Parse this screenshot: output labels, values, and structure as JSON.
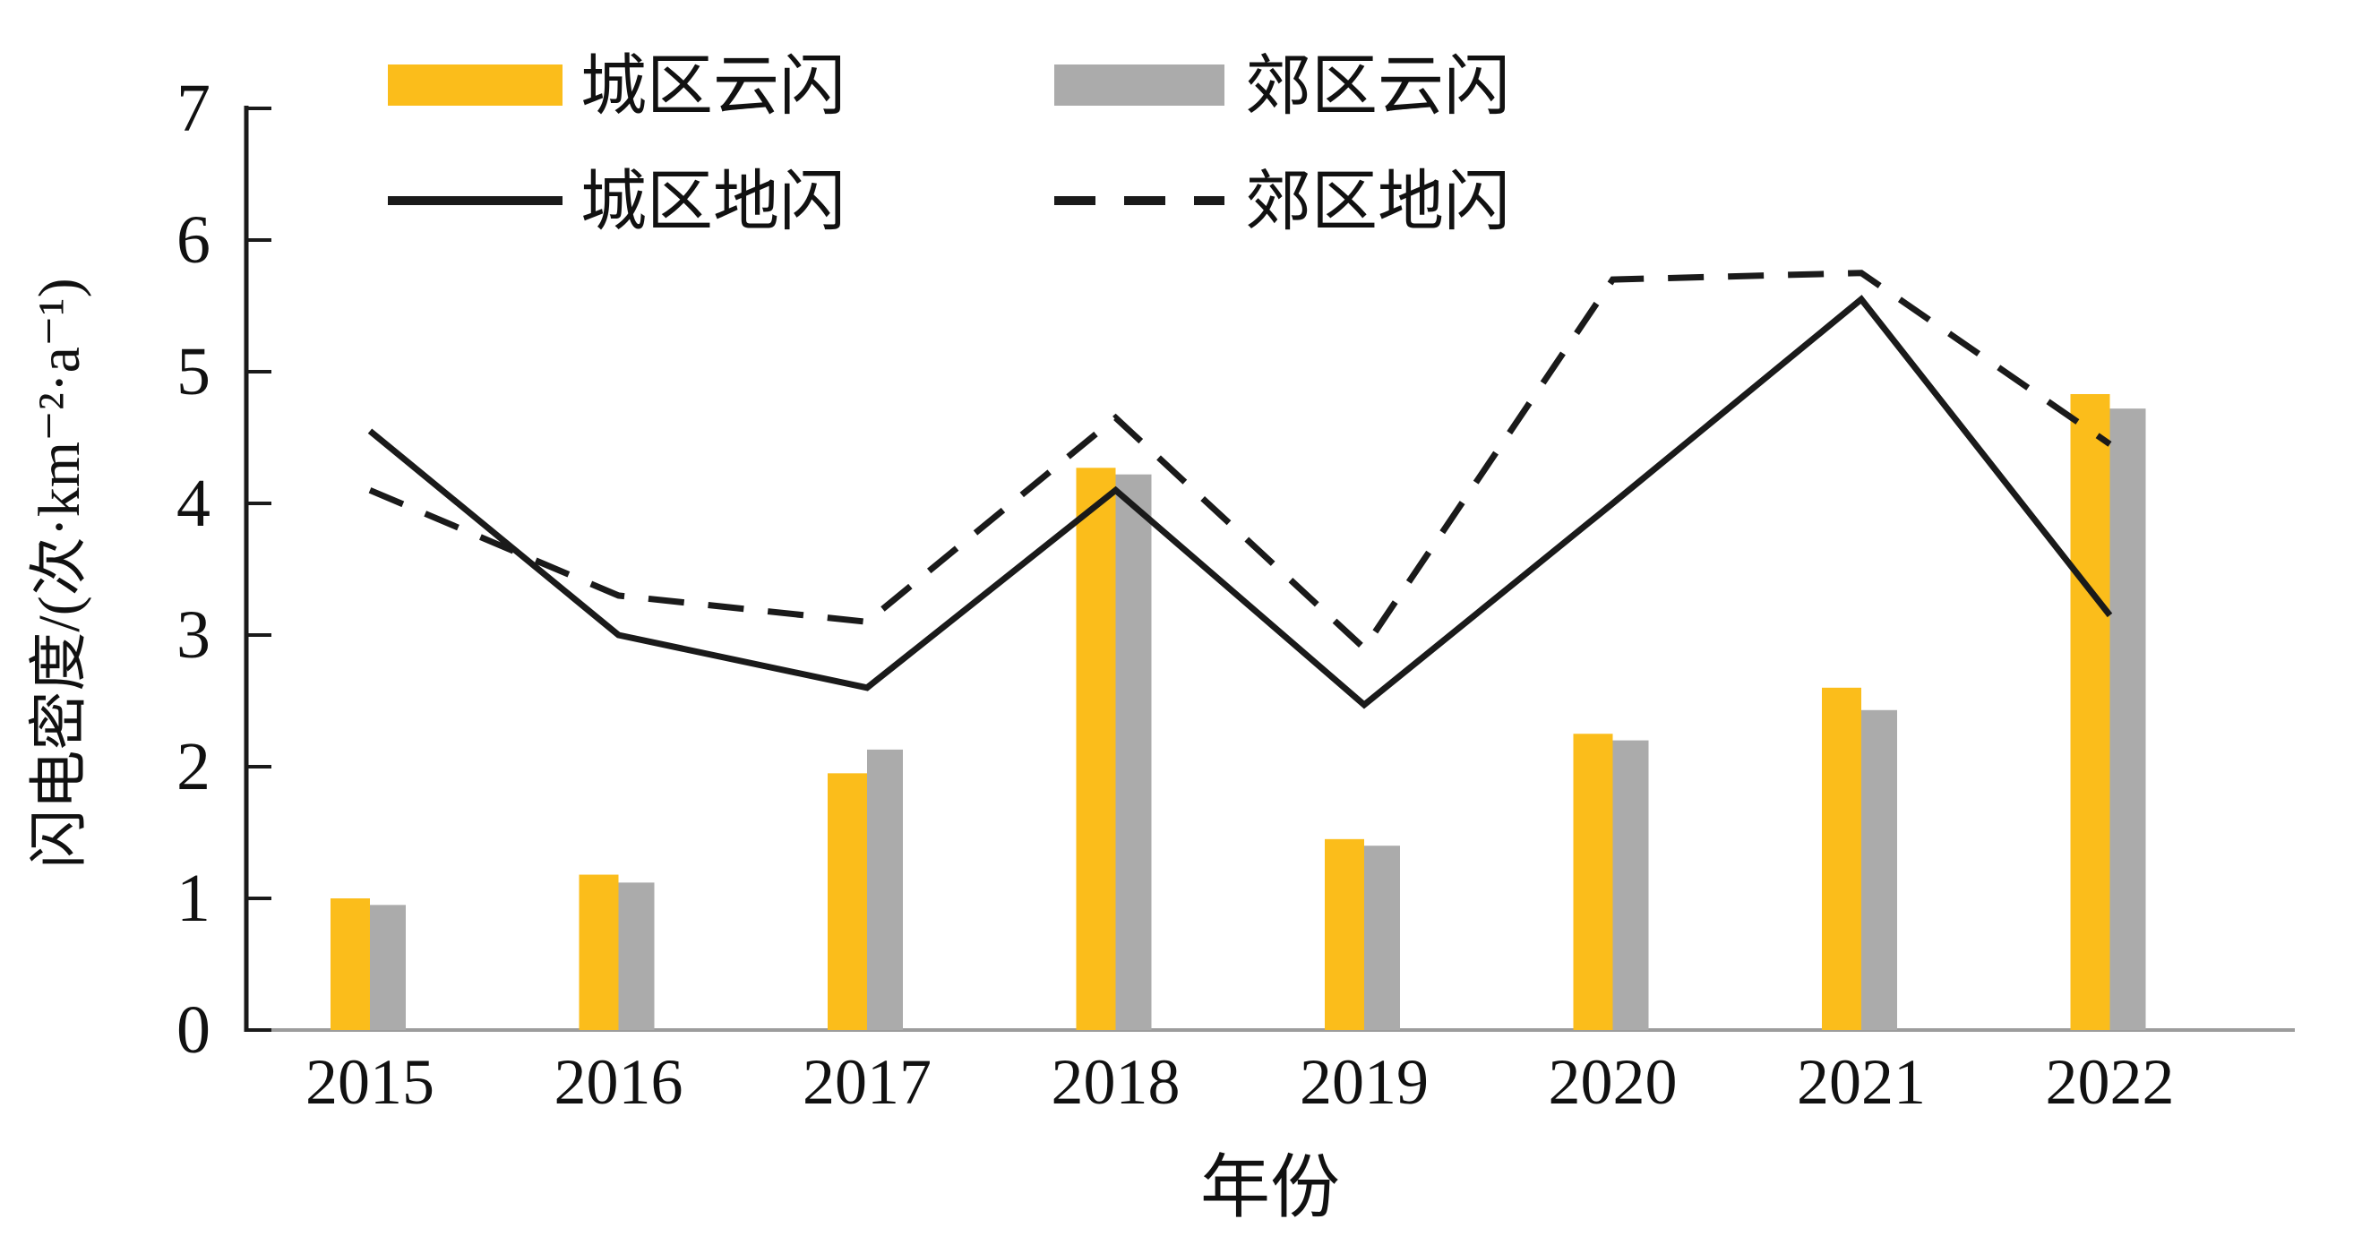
{
  "chart_data": {
    "type": "bar+line",
    "title": "",
    "xlabel": "年份",
    "ylabel": "闪电密度/(次·km⁻²·a⁻¹)",
    "ylim": [
      0,
      7
    ],
    "yticks": [
      "0",
      "1",
      "2",
      "3",
      "4",
      "5",
      "6",
      "7"
    ],
    "grid": false,
    "legend_position": "top",
    "background": "#ffffff",
    "axis_color": "#1a1a1a",
    "baseline_color": "#9c9c9c",
    "categories": [
      "2015",
      "2016",
      "2017",
      "2018",
      "2019",
      "2020",
      "2021",
      "2022"
    ],
    "series": [
      {
        "id": "urban-cloud",
        "name": "城区云闪",
        "type": "bar",
        "style": "solid",
        "color": "#FBBD1B",
        "values": [
          1.0,
          1.18,
          1.95,
          4.27,
          1.45,
          2.25,
          2.6,
          4.83
        ]
      },
      {
        "id": "suburb-cloud",
        "name": "郊区云闪",
        "type": "bar",
        "style": "solid",
        "color": "#ABABAB",
        "values": [
          0.95,
          1.12,
          2.13,
          4.22,
          1.4,
          2.2,
          2.43,
          4.72
        ]
      },
      {
        "id": "urban-ground",
        "name": "城区地闪",
        "type": "line",
        "style": "solid",
        "color": "#1a1a1a",
        "values": [
          4.55,
          3.0,
          2.6,
          4.1,
          2.47,
          4.0,
          5.55,
          3.15
        ]
      },
      {
        "id": "suburb-ground",
        "name": "郊区地闪",
        "type": "line",
        "style": "dashed",
        "color": "#1a1a1a",
        "values": [
          4.1,
          3.3,
          3.1,
          4.65,
          2.9,
          5.7,
          5.75,
          4.45
        ]
      }
    ]
  }
}
